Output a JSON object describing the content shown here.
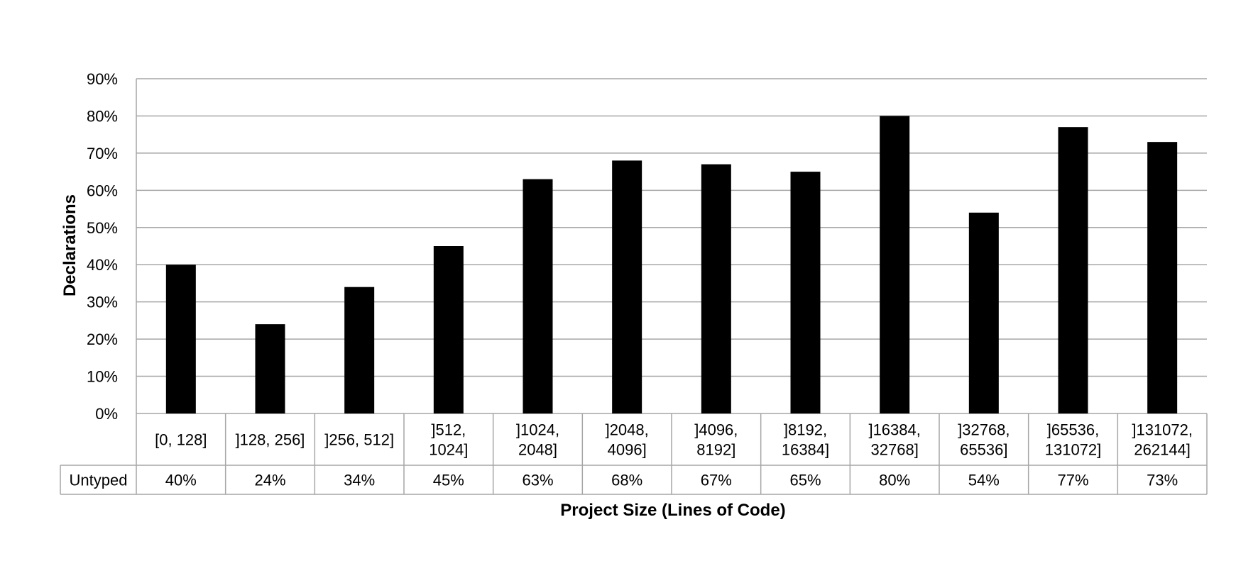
{
  "chart_data": {
    "type": "bar",
    "xlabel": "Project Size (Lines of Code)",
    "ylabel": "Declarations",
    "ylim": [
      0,
      90
    ],
    "yticks": [
      "0%",
      "10%",
      "20%",
      "30%",
      "40%",
      "50%",
      "60%",
      "70%",
      "80%",
      "90%"
    ],
    "grid": true,
    "categories": [
      [
        "[0, 128]"
      ],
      [
        "]128, 256]"
      ],
      [
        "]256, 512]"
      ],
      [
        "]512,",
        "1024]"
      ],
      [
        "]1024,",
        "2048]"
      ],
      [
        "]2048,",
        "4096]"
      ],
      [
        "]4096,",
        "8192]"
      ],
      [
        "]8192,",
        "16384]"
      ],
      [
        "]16384,",
        "32768]"
      ],
      [
        "]32768,",
        "65536]"
      ],
      [
        "]65536,",
        "131072]"
      ],
      [
        "]131072,",
        "262144]"
      ]
    ],
    "series": [
      {
        "name": "Untyped",
        "color": "#000000",
        "values": [
          40,
          24,
          34,
          45,
          63,
          68,
          67,
          65,
          80,
          54,
          77,
          73
        ],
        "labels": [
          "40%",
          "24%",
          "34%",
          "45%",
          "63%",
          "68%",
          "67%",
          "65%",
          "80%",
          "54%",
          "77%",
          "73%"
        ]
      }
    ]
  }
}
